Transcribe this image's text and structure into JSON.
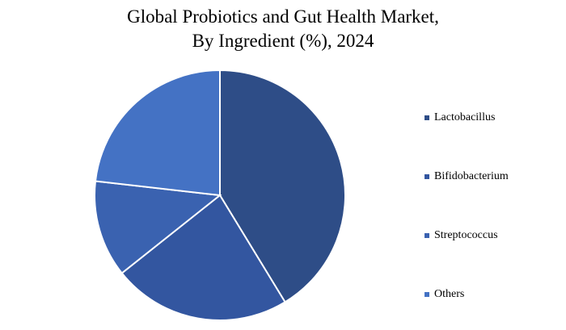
{
  "chart_data": {
    "type": "pie",
    "title": "Global Probiotics and Gut Health Market, By Ingredient (%), 2024",
    "categories": [
      "Lactobacillus",
      "Bifidobacterium",
      "Streptococcus",
      "Others"
    ],
    "values": [
      41.3,
      23,
      12.5,
      23.2
    ],
    "colors": [
      "#2e4d87",
      "#3356a0",
      "#3a62b0",
      "#4472c4"
    ],
    "legend": "right"
  }
}
